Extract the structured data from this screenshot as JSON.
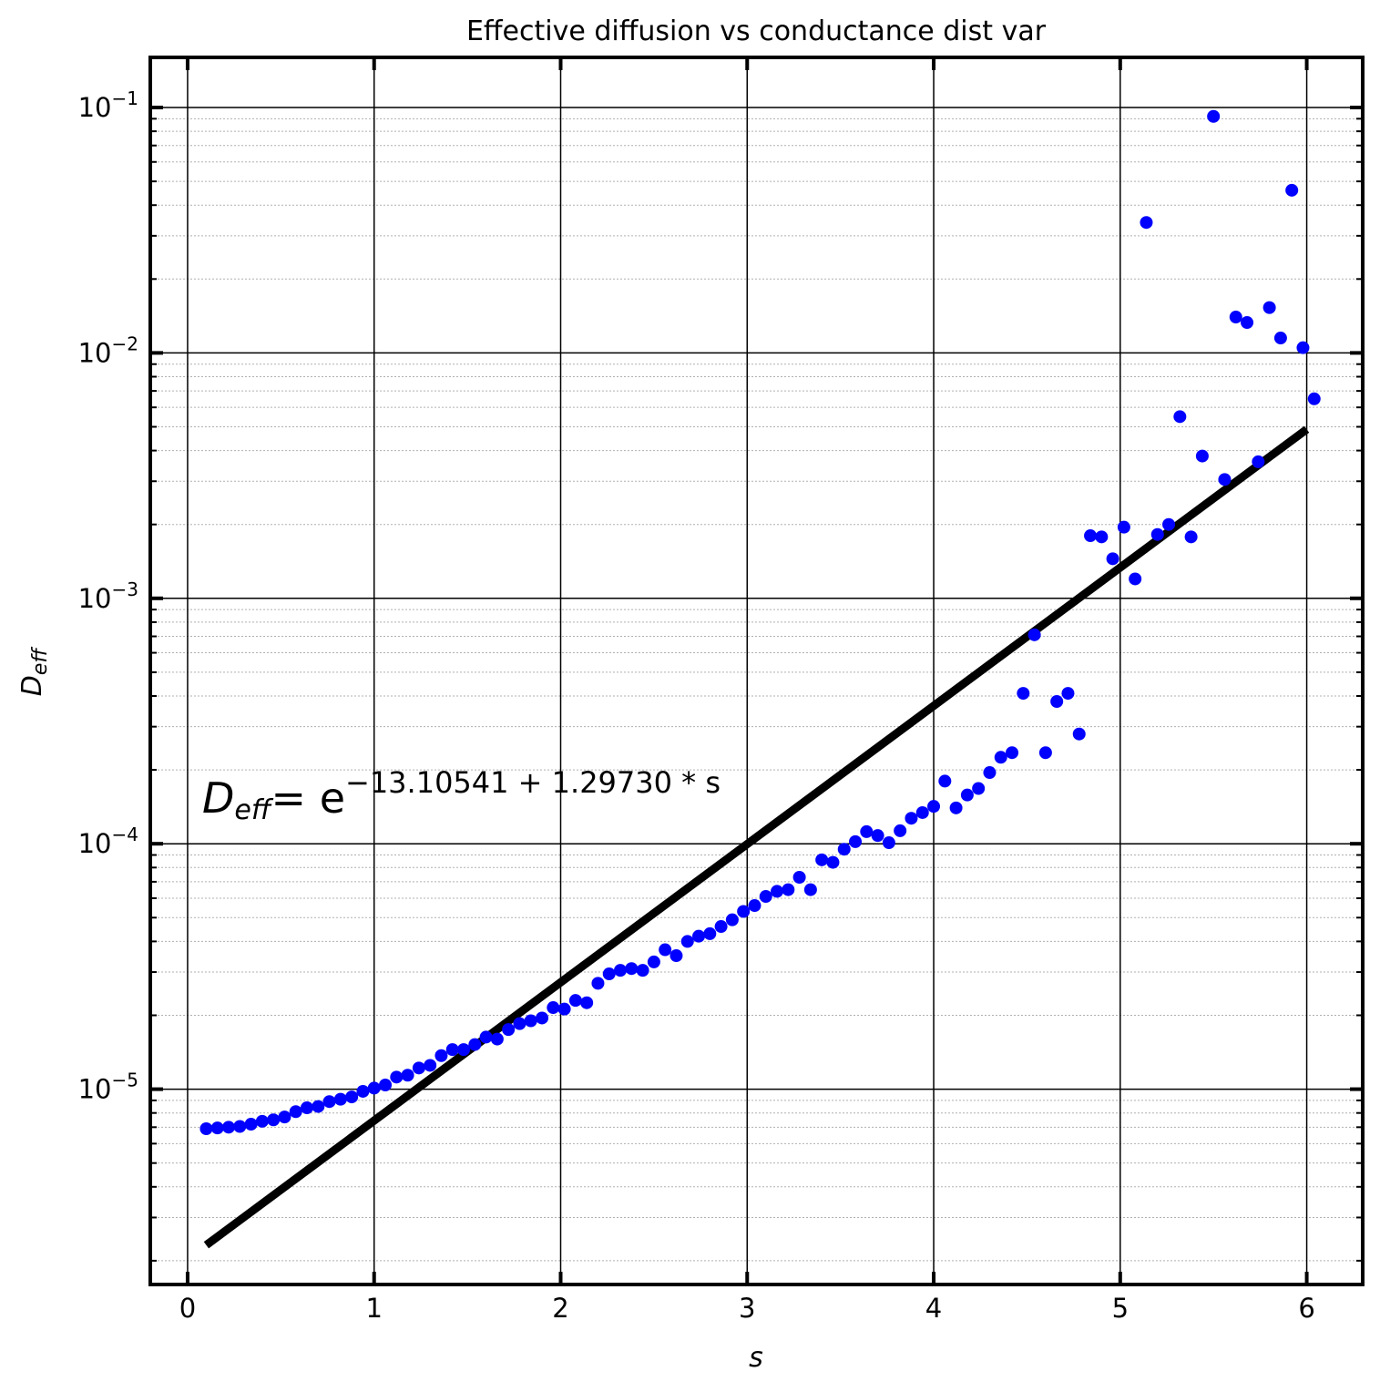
{
  "colors": {
    "points": "#0000ff",
    "fit": "#000000",
    "grid_major": "#000000",
    "grid_minor": "#b0b0b0"
  },
  "chart_data": {
    "type": "scatter",
    "title": "Effective diffusion vs conductance dist var",
    "xlabel": "s",
    "ylabel_main": "D",
    "ylabel_sub": "eff",
    "xlim": [
      -0.2,
      6.3
    ],
    "ylim": [
      1.6e-06,
      0.16
    ],
    "yscale": "log",
    "grid": "major and minor",
    "xticks": [
      0,
      1,
      2,
      3,
      4,
      5,
      6
    ],
    "xtick_labels": [
      "0",
      "1",
      "2",
      "3",
      "4",
      "5",
      "6"
    ],
    "yticks": [
      1e-05,
      0.0001,
      0.001,
      0.01,
      0.1
    ],
    "ytick_base": "10",
    "ytick_exponents": [
      "−5",
      "−4",
      "−3",
      "−2",
      "−1"
    ],
    "fit": {
      "intercept": -13.10541,
      "slope": 1.2973,
      "x_range": [
        0.1,
        6.0
      ],
      "label_main": "D",
      "label_sub": "eff",
      "label_eq": "= e",
      "label_exp": "−13.10541 + 1.29730 * s"
    },
    "x": [
      0.1,
      0.16,
      0.22,
      0.28,
      0.34,
      0.4,
      0.46,
      0.52,
      0.58,
      0.64,
      0.7,
      0.76,
      0.82,
      0.88,
      0.94,
      1.0,
      1.06,
      1.12,
      1.18,
      1.24,
      1.3,
      1.36,
      1.42,
      1.48,
      1.54,
      1.6,
      1.66,
      1.72,
      1.78,
      1.84,
      1.9,
      1.96,
      2.02,
      2.08,
      2.14,
      2.2,
      2.26,
      2.32,
      2.38,
      2.44,
      2.5,
      2.56,
      2.62,
      2.68,
      2.74,
      2.8,
      2.86,
      2.92,
      2.98,
      3.04,
      3.1,
      3.16,
      3.22,
      3.28,
      3.34,
      3.4,
      3.46,
      3.52,
      3.58,
      3.64,
      3.7,
      3.76,
      3.82,
      3.88,
      3.94,
      4.0,
      4.06,
      4.12,
      4.18,
      4.24,
      4.3,
      4.36,
      4.42,
      4.48,
      4.54,
      4.6,
      4.66,
      4.72,
      4.78,
      4.84,
      4.9,
      4.96,
      5.02,
      5.08,
      5.14,
      5.2,
      5.26,
      5.32,
      5.38,
      5.44,
      5.5,
      5.56,
      5.62,
      5.68,
      5.74,
      5.8,
      5.86,
      5.92,
      5.98,
      6.04
    ],
    "y": [
      6.9e-06,
      6.95e-06,
      7e-06,
      7.05e-06,
      7.2e-06,
      7.4e-06,
      7.5e-06,
      7.7e-06,
      8.1e-06,
      8.4e-06,
      8.5e-06,
      8.9e-06,
      9.1e-06,
      9.3e-06,
      9.8e-06,
      1.01e-05,
      1.04e-05,
      1.12e-05,
      1.14e-05,
      1.22e-05,
      1.25e-05,
      1.37e-05,
      1.45e-05,
      1.45e-05,
      1.52e-05,
      1.63e-05,
      1.6e-05,
      1.75e-05,
      1.85e-05,
      1.9e-05,
      1.95e-05,
      2.15e-05,
      2.12e-05,
      2.3e-05,
      2.25e-05,
      2.7e-05,
      2.95e-05,
      3.05e-05,
      3.1e-05,
      3.05e-05,
      3.3e-05,
      3.7e-05,
      3.5e-05,
      4e-05,
      4.2e-05,
      4.3e-05,
      4.6e-05,
      4.9e-05,
      5.3e-05,
      5.6e-05,
      6.1e-05,
      6.4e-05,
      6.5e-05,
      7.3e-05,
      6.5e-05,
      8.6e-05,
      8.4e-05,
      9.5e-05,
      0.000102,
      0.000112,
      0.000108,
      0.000101,
      0.000113,
      0.000127,
      0.000134,
      0.000142,
      0.00018,
      0.00014,
      0.000158,
      0.000168,
      0.000195,
      0.000225,
      0.000235,
      0.00041,
      0.00071,
      0.000235,
      0.00038,
      0.00041,
      0.00028,
      0.0018,
      0.00178,
      0.00145,
      0.00195,
      0.0012,
      0.034,
      0.00182,
      0.002,
      0.0055,
      0.00178,
      0.0038,
      0.092,
      0.00305,
      0.014,
      0.0133,
      0.0036,
      0.0153,
      0.0115,
      0.046,
      0.0105,
      0.0065
    ]
  }
}
